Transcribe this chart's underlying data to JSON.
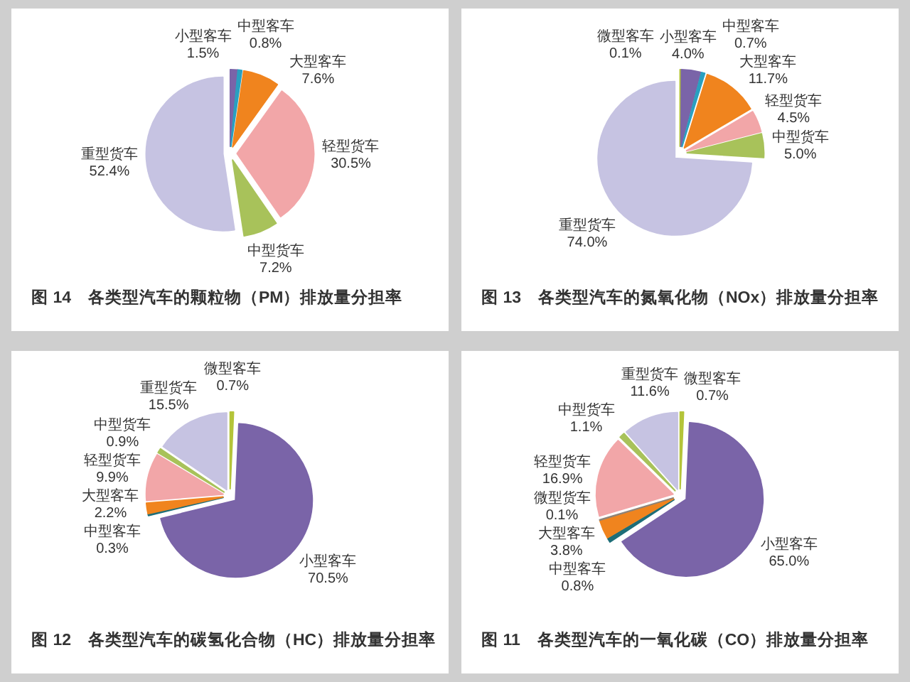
{
  "chart_data": [
    {
      "type": "pie",
      "title": "图 14　各类型汽车的颗粒物（PM）排放量分担率",
      "categories": [
        "小型客车",
        "中型客车",
        "大型客车",
        "轻型货车",
        "中型货车",
        "重型货车"
      ],
      "values": [
        1.5,
        0.8,
        7.6,
        30.5,
        7.2,
        52.4
      ],
      "value_labels": [
        "1.5%",
        "0.8%",
        "7.6%",
        "30.5%",
        "7.2%",
        "52.4%"
      ],
      "colors": [
        "#7a64a8",
        "#2aa0c0",
        "#f0841e",
        "#f2a6a8",
        "#a8c25a",
        "#c6c3e2"
      ]
    },
    {
      "type": "pie",
      "title": "图 13　各类型汽车的氮氧化物（NOx）排放量分担率",
      "categories": [
        "微型客车",
        "小型客车",
        "中型客车",
        "大型客车",
        "轻型货车",
        "中型货车",
        "重型货车"
      ],
      "values": [
        0.1,
        4.0,
        0.7,
        11.7,
        4.5,
        5.0,
        74.0
      ],
      "value_labels": [
        "0.1%",
        "4.0%",
        "0.7%",
        "11.7%",
        "4.5%",
        "5.0%",
        "74.0%"
      ],
      "colors": [
        "#b4c43a",
        "#7a64a8",
        "#2aa0c0",
        "#f0841e",
        "#f2a6a8",
        "#a8c25a",
        "#c6c3e2"
      ]
    },
    {
      "type": "pie",
      "title": "图 12　各类型汽车的碳氢化合物（HC）排放量分担率",
      "categories": [
        "微型客车",
        "小型客车",
        "中型客车",
        "大型客车",
        "轻型货车",
        "中型货车",
        "重型货车"
      ],
      "values": [
        0.7,
        70.5,
        0.3,
        2.2,
        9.9,
        0.9,
        15.5
      ],
      "value_labels": [
        "0.7%",
        "70.5%",
        "0.3%",
        "2.2%",
        "9.9%",
        "0.9%",
        "15.5%"
      ],
      "colors": [
        "#b4c43a",
        "#7a64a8",
        "#1e6e78",
        "#f0841e",
        "#f2a6a8",
        "#a8c25a",
        "#c6c3e2"
      ]
    },
    {
      "type": "pie",
      "title": "图 11　各类型汽车的一氧化碳（CO）排放量分担率",
      "categories": [
        "微型客车",
        "小型客车",
        "中型客车",
        "大型客车",
        "微型货车",
        "轻型货车",
        "中型货车",
        "重型货车"
      ],
      "values": [
        0.7,
        65.0,
        0.8,
        3.8,
        0.1,
        16.9,
        1.1,
        11.6
      ],
      "value_labels": [
        "0.7%",
        "65.0%",
        "0.8%",
        "3.8%",
        "0.1%",
        "16.9%",
        "1.1%",
        "11.6%"
      ],
      "colors": [
        "#b4c43a",
        "#7a64a8",
        "#1e6e78",
        "#f0841e",
        "#8e8378",
        "#f2a6a8",
        "#a8c25a",
        "#c6c3e2"
      ]
    }
  ]
}
